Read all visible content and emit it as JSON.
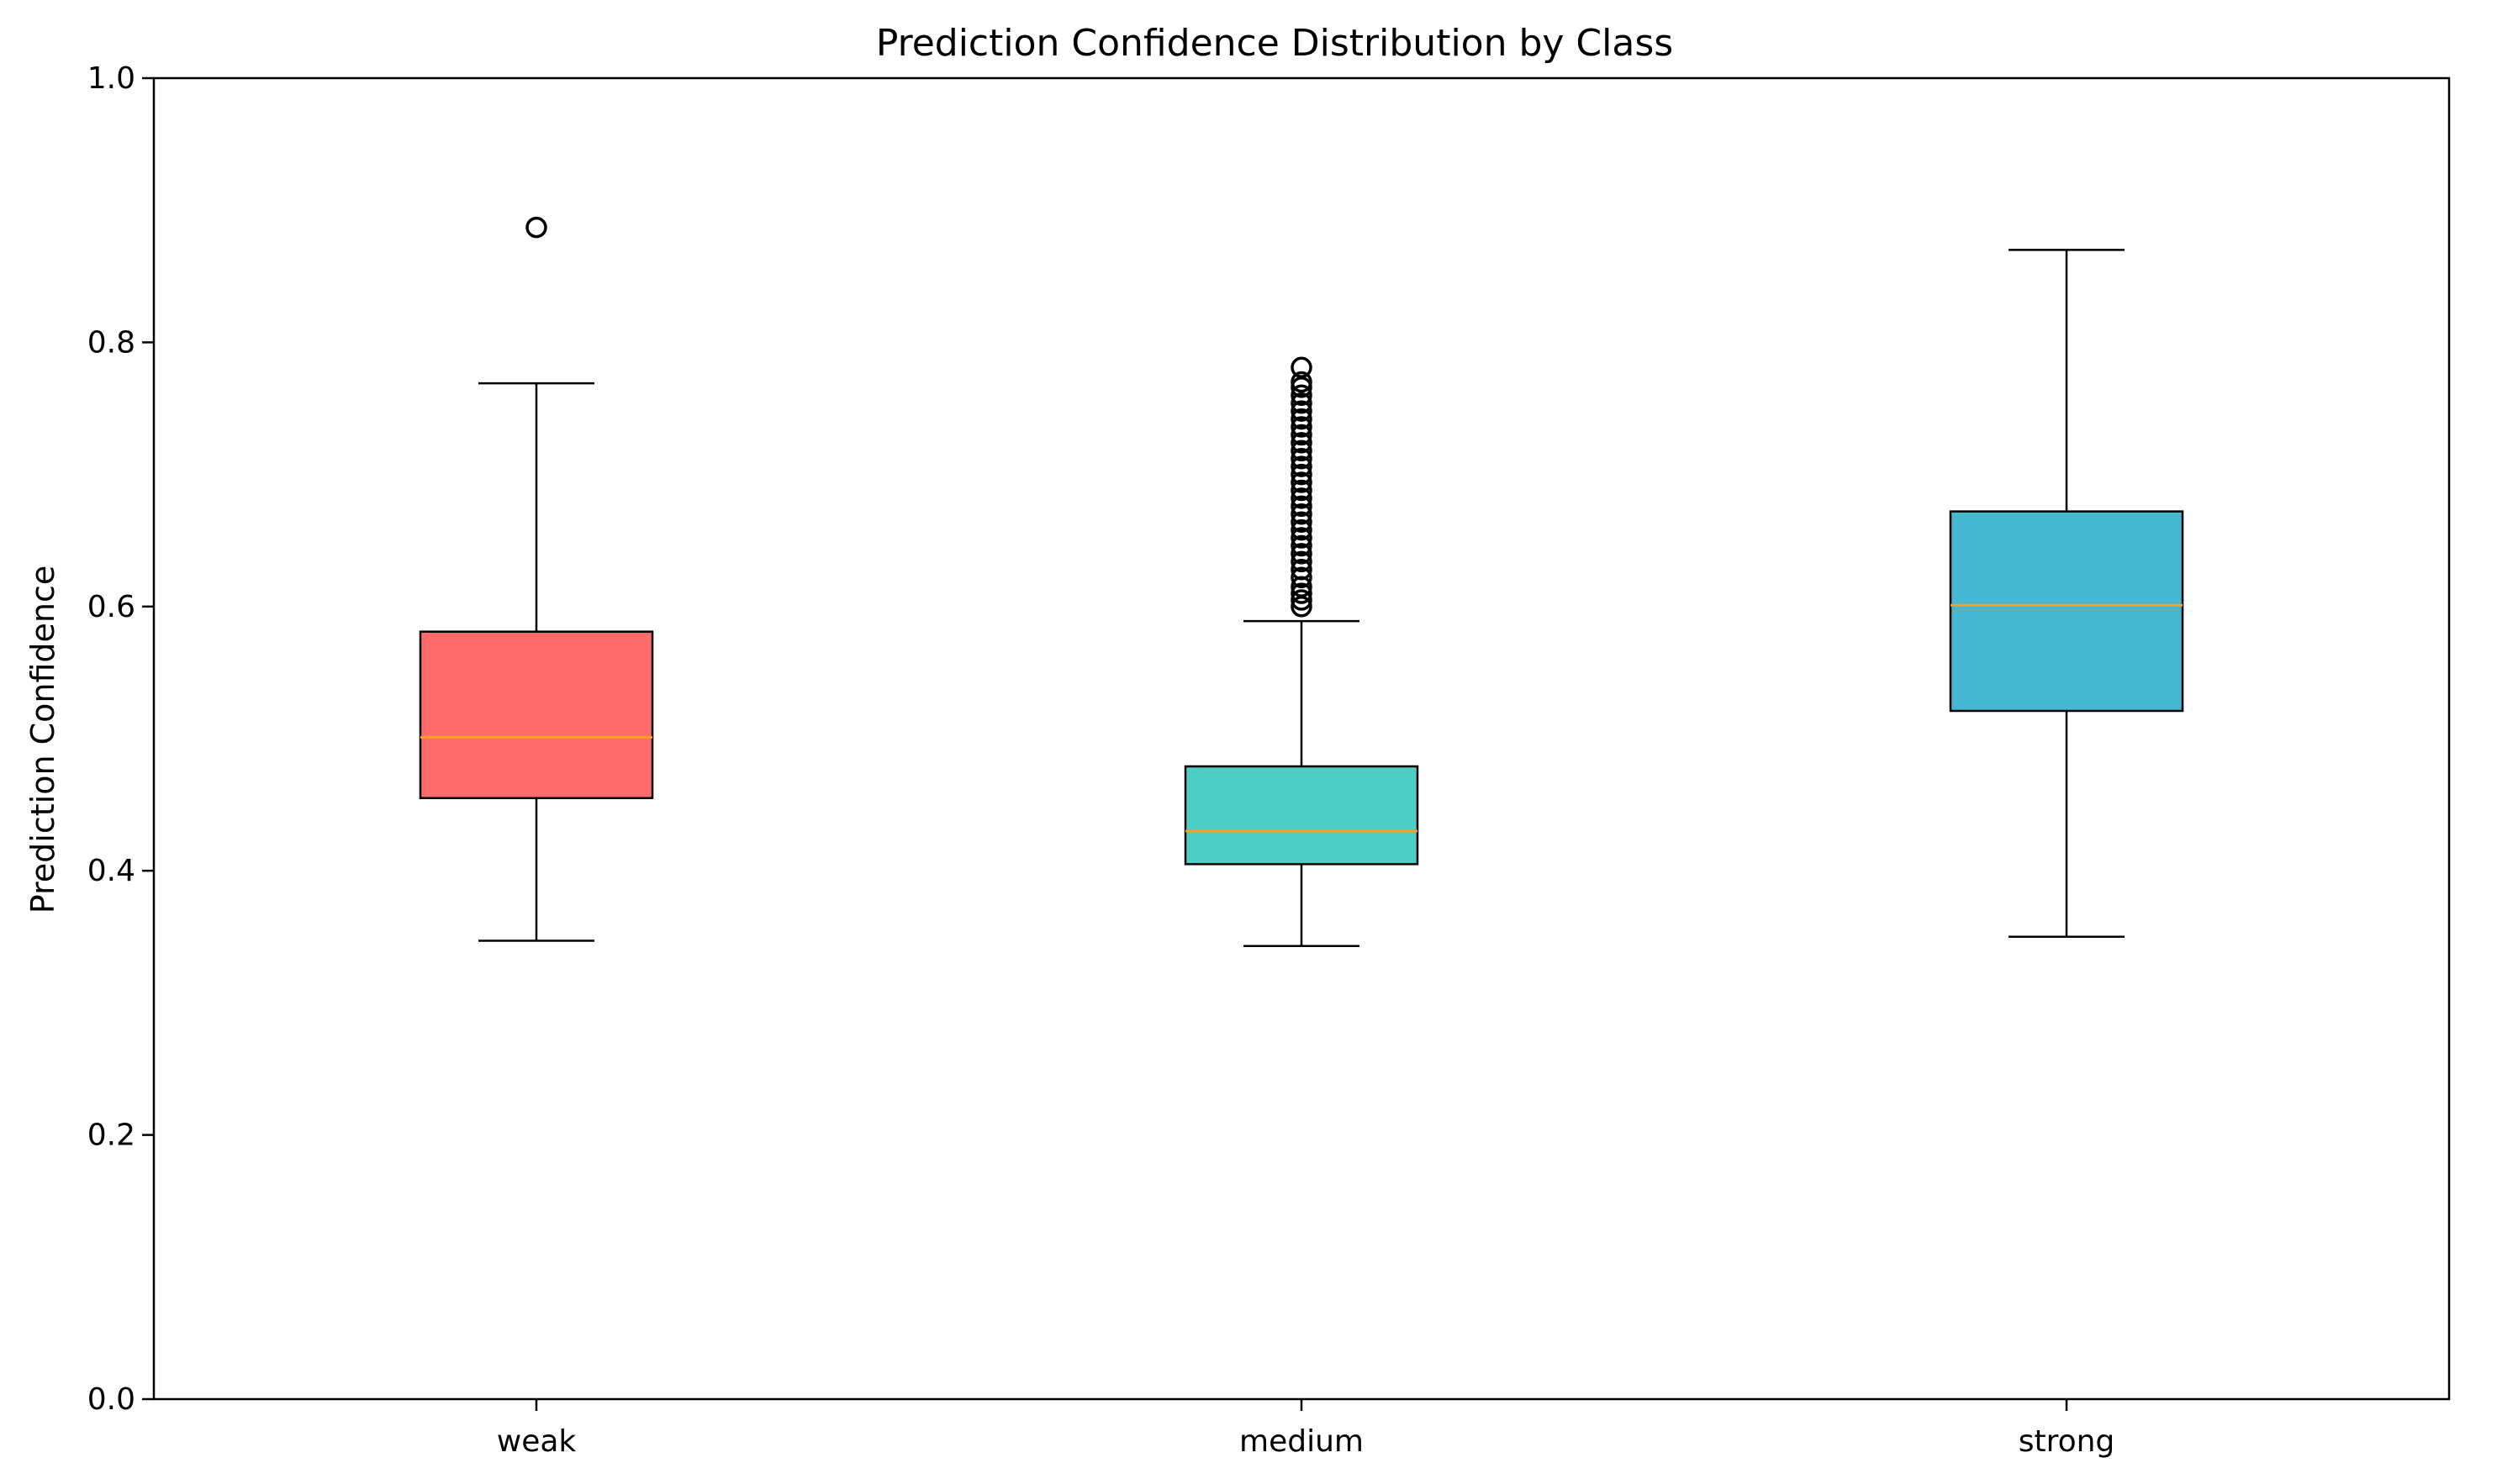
{
  "chart_data": {
    "type": "box",
    "title": "Prediction Confidence Distribution by Class",
    "xlabel": "",
    "ylabel": "Prediction Confidence",
    "ylim": [
      0,
      1.0
    ],
    "yticks": [
      "0.0",
      "0.2",
      "0.4",
      "0.6",
      "0.8",
      "1.0"
    ],
    "grid": false,
    "categories": [
      "weak",
      "medium",
      "strong"
    ],
    "boxes": [
      {
        "category": "weak",
        "color": "#ff6b6b",
        "whisker_low": 0.347,
        "q1": 0.455,
        "median": 0.501,
        "q3": 0.581,
        "whisker_high": 0.769,
        "outliers": [
          0.887
        ]
      },
      {
        "category": "medium",
        "color": "#4ecdc4",
        "whisker_low": 0.343,
        "q1": 0.405,
        "median": 0.43,
        "q3": 0.479,
        "whisker_high": 0.589,
        "outliers": [
          0.6,
          0.605,
          0.61,
          0.615,
          0.622,
          0.628,
          0.634,
          0.64,
          0.646,
          0.652,
          0.658,
          0.664,
          0.67,
          0.676,
          0.682,
          0.688,
          0.694,
          0.7,
          0.706,
          0.712,
          0.718,
          0.724,
          0.73,
          0.736,
          0.742,
          0.748,
          0.754,
          0.76,
          0.766,
          0.77,
          0.781
        ]
      },
      {
        "category": "strong",
        "color": "#45b7d1",
        "whisker_low": 0.35,
        "q1": 0.521,
        "median": 0.601,
        "q3": 0.672,
        "whisker_high": 0.87,
        "outliers": []
      }
    ],
    "median_color": "#ff9f1c"
  }
}
